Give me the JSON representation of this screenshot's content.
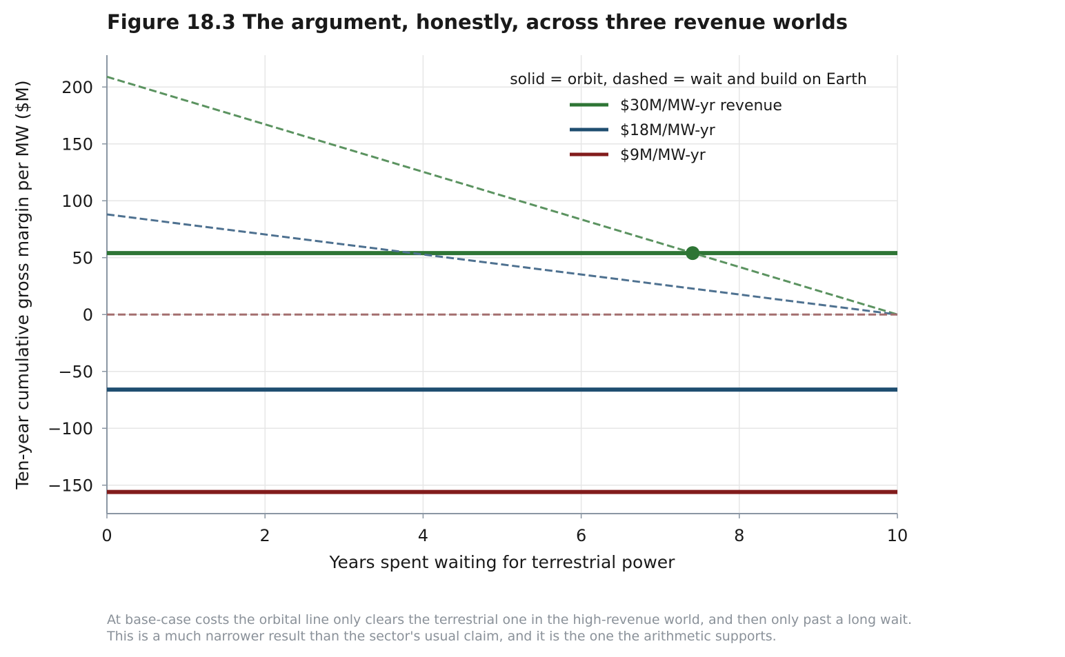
{
  "chart_data": {
    "type": "line",
    "title": "Figure 18.3  The argument, honestly, across three revenue worlds",
    "xlabel": "Years spent waiting for terrestrial power",
    "ylabel": "Ten-year cumulative gross margin per MW ($M)",
    "xlim": [
      0,
      10
    ],
    "ylim": [
      -175,
      228
    ],
    "xticks": [
      0,
      2,
      4,
      6,
      8,
      10
    ],
    "xtick_labels": [
      "0",
      "2",
      "4",
      "6",
      "8",
      "10"
    ],
    "yticks": [
      200,
      150,
      100,
      50,
      0,
      -50,
      -100,
      -150
    ],
    "ytick_labels": [
      "200",
      "150",
      "100",
      "50",
      "0",
      "−50",
      "−100",
      "−150"
    ],
    "grid": true,
    "legend": {
      "title": "solid = orbit,  dashed = wait and build on Earth",
      "placement": "top-right",
      "entries": [
        "$30M/MW-yr revenue",
        "$18M/MW-yr",
        "$9M/MW-yr"
      ]
    },
    "series": [
      {
        "name": "$30M/MW-yr revenue",
        "style": "solid",
        "color": "#2e7535",
        "x": [
          0,
          10
        ],
        "y": [
          54,
          54
        ]
      },
      {
        "name": "$18M/MW-yr",
        "style": "solid",
        "color": "#1f4e70",
        "x": [
          0,
          10
        ],
        "y": [
          -66,
          -66
        ]
      },
      {
        "name": "$9M/MW-yr",
        "style": "solid",
        "color": "#821c1c",
        "x": [
          0,
          10
        ],
        "y": [
          -156,
          -156
        ]
      },
      {
        "style": "dashed",
        "color": "#5b9360",
        "x": [
          0,
          10
        ],
        "y": [
          209,
          0
        ]
      },
      {
        "style": "dashed",
        "color": "#4e7190",
        "x": [
          0,
          10
        ],
        "y": [
          88,
          0
        ]
      },
      {
        "style": "dashed",
        "color": "#a36e6e",
        "x": [
          0,
          10
        ],
        "y": [
          0,
          0
        ]
      }
    ],
    "markers": [
      {
        "x": 7.41,
        "y": 54,
        "color": "#2e7535"
      }
    ]
  },
  "caption": [
    "At base-case costs the orbital line only clears the terrestrial one in the high-revenue world, and then only past a long wait.",
    "This is a much narrower result than the sector's usual claim, and it is the one the arithmetic supports."
  ]
}
